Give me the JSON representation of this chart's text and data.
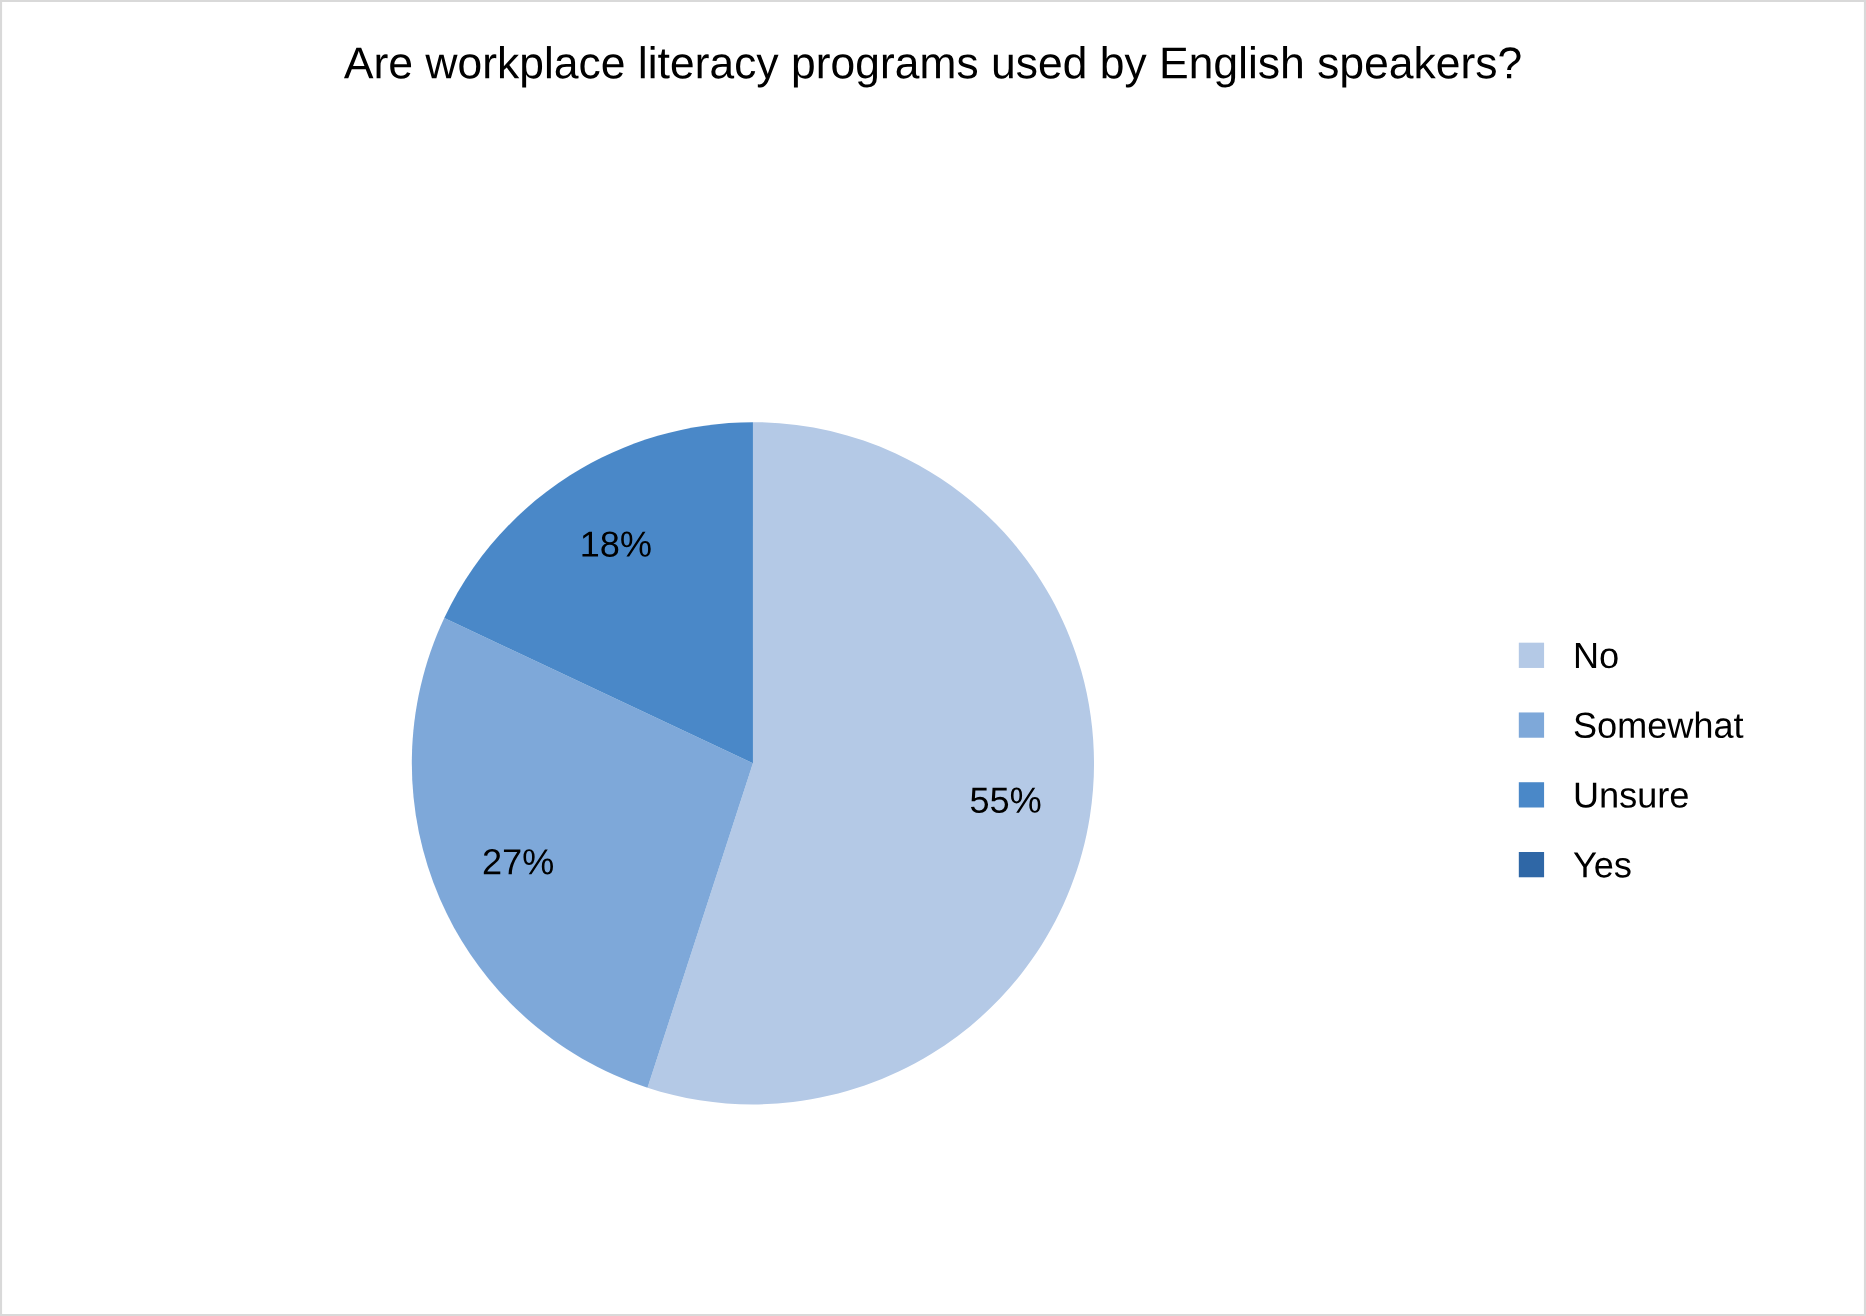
{
  "chart_data": {
    "type": "pie",
    "title": "Are workplace literacy programs used by English speakers?",
    "categories": [
      "No",
      "Somewhat",
      "Unsure",
      "Yes"
    ],
    "values": [
      55,
      27,
      18,
      0
    ],
    "colors": [
      "#b4c9e6",
      "#7ea8d9",
      "#4a88c8",
      "#2f67a6"
    ],
    "value_labels": [
      "55%",
      "27%",
      "18%",
      null
    ],
    "legend": "right"
  }
}
